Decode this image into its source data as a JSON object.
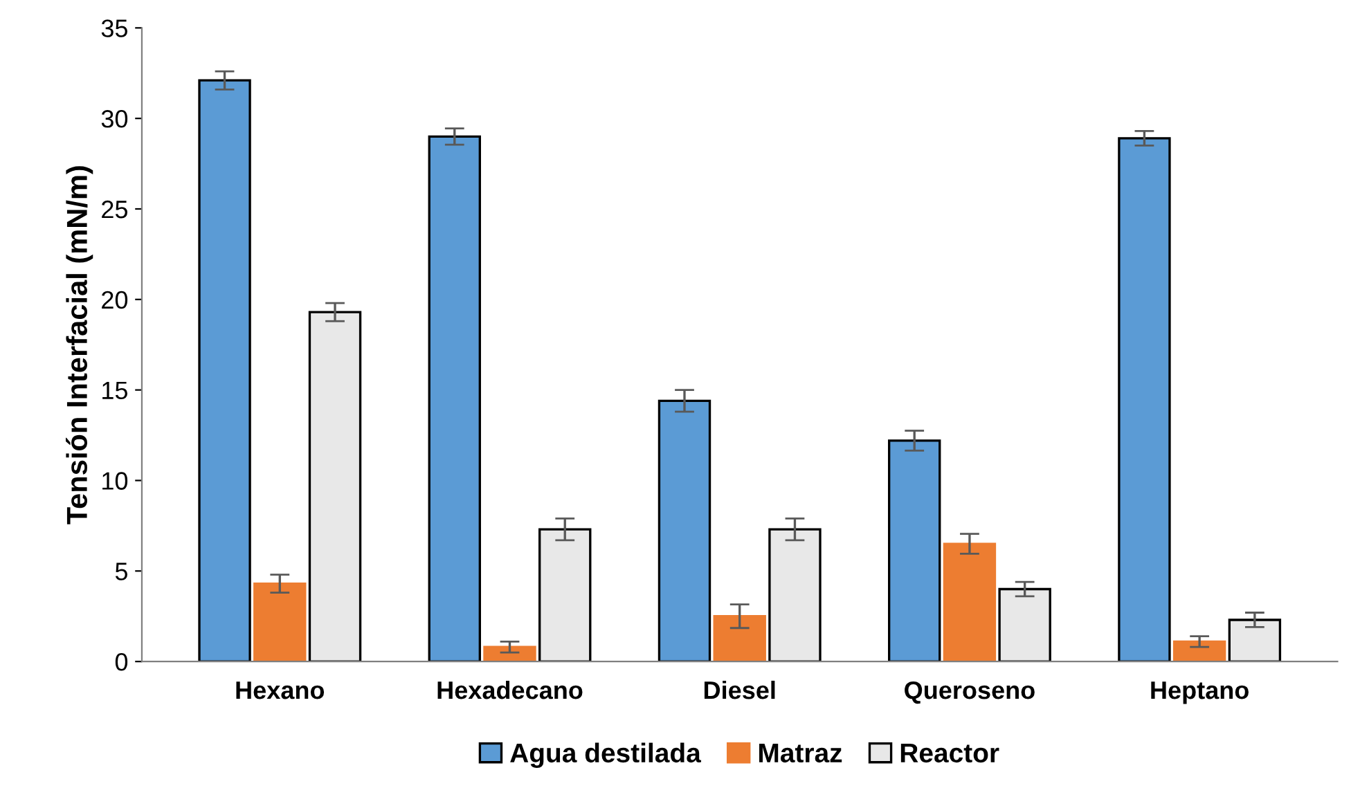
{
  "chart_data": {
    "type": "bar",
    "ylabel": "Tensión Interfacial (mN/m)",
    "categories": [
      "Hexano",
      "Hexadecano",
      "Diesel",
      "Queroseno",
      "Heptano"
    ],
    "series": [
      {
        "name": "Agua destilada",
        "color": "#5b9bd5",
        "values": [
          32.1,
          29.0,
          14.4,
          12.2,
          28.9
        ],
        "errors": [
          0.5,
          0.45,
          0.6,
          0.55,
          0.4
        ]
      },
      {
        "name": "Matraz",
        "color": "#ed7d31",
        "values": [
          4.3,
          0.8,
          2.5,
          6.5,
          1.1
        ],
        "errors": [
          0.5,
          0.3,
          0.65,
          0.55,
          0.3
        ]
      },
      {
        "name": "Reactor",
        "color": "#e8e8e8",
        "values": [
          19.3,
          7.3,
          7.3,
          4.0,
          2.3
        ],
        "errors": [
          0.5,
          0.6,
          0.6,
          0.4,
          0.4
        ]
      }
    ],
    "ylim": [
      0,
      35
    ],
    "yticks": [
      0,
      5,
      10,
      15,
      20,
      25,
      30,
      35
    ],
    "grid": false,
    "legend": "bottom"
  }
}
